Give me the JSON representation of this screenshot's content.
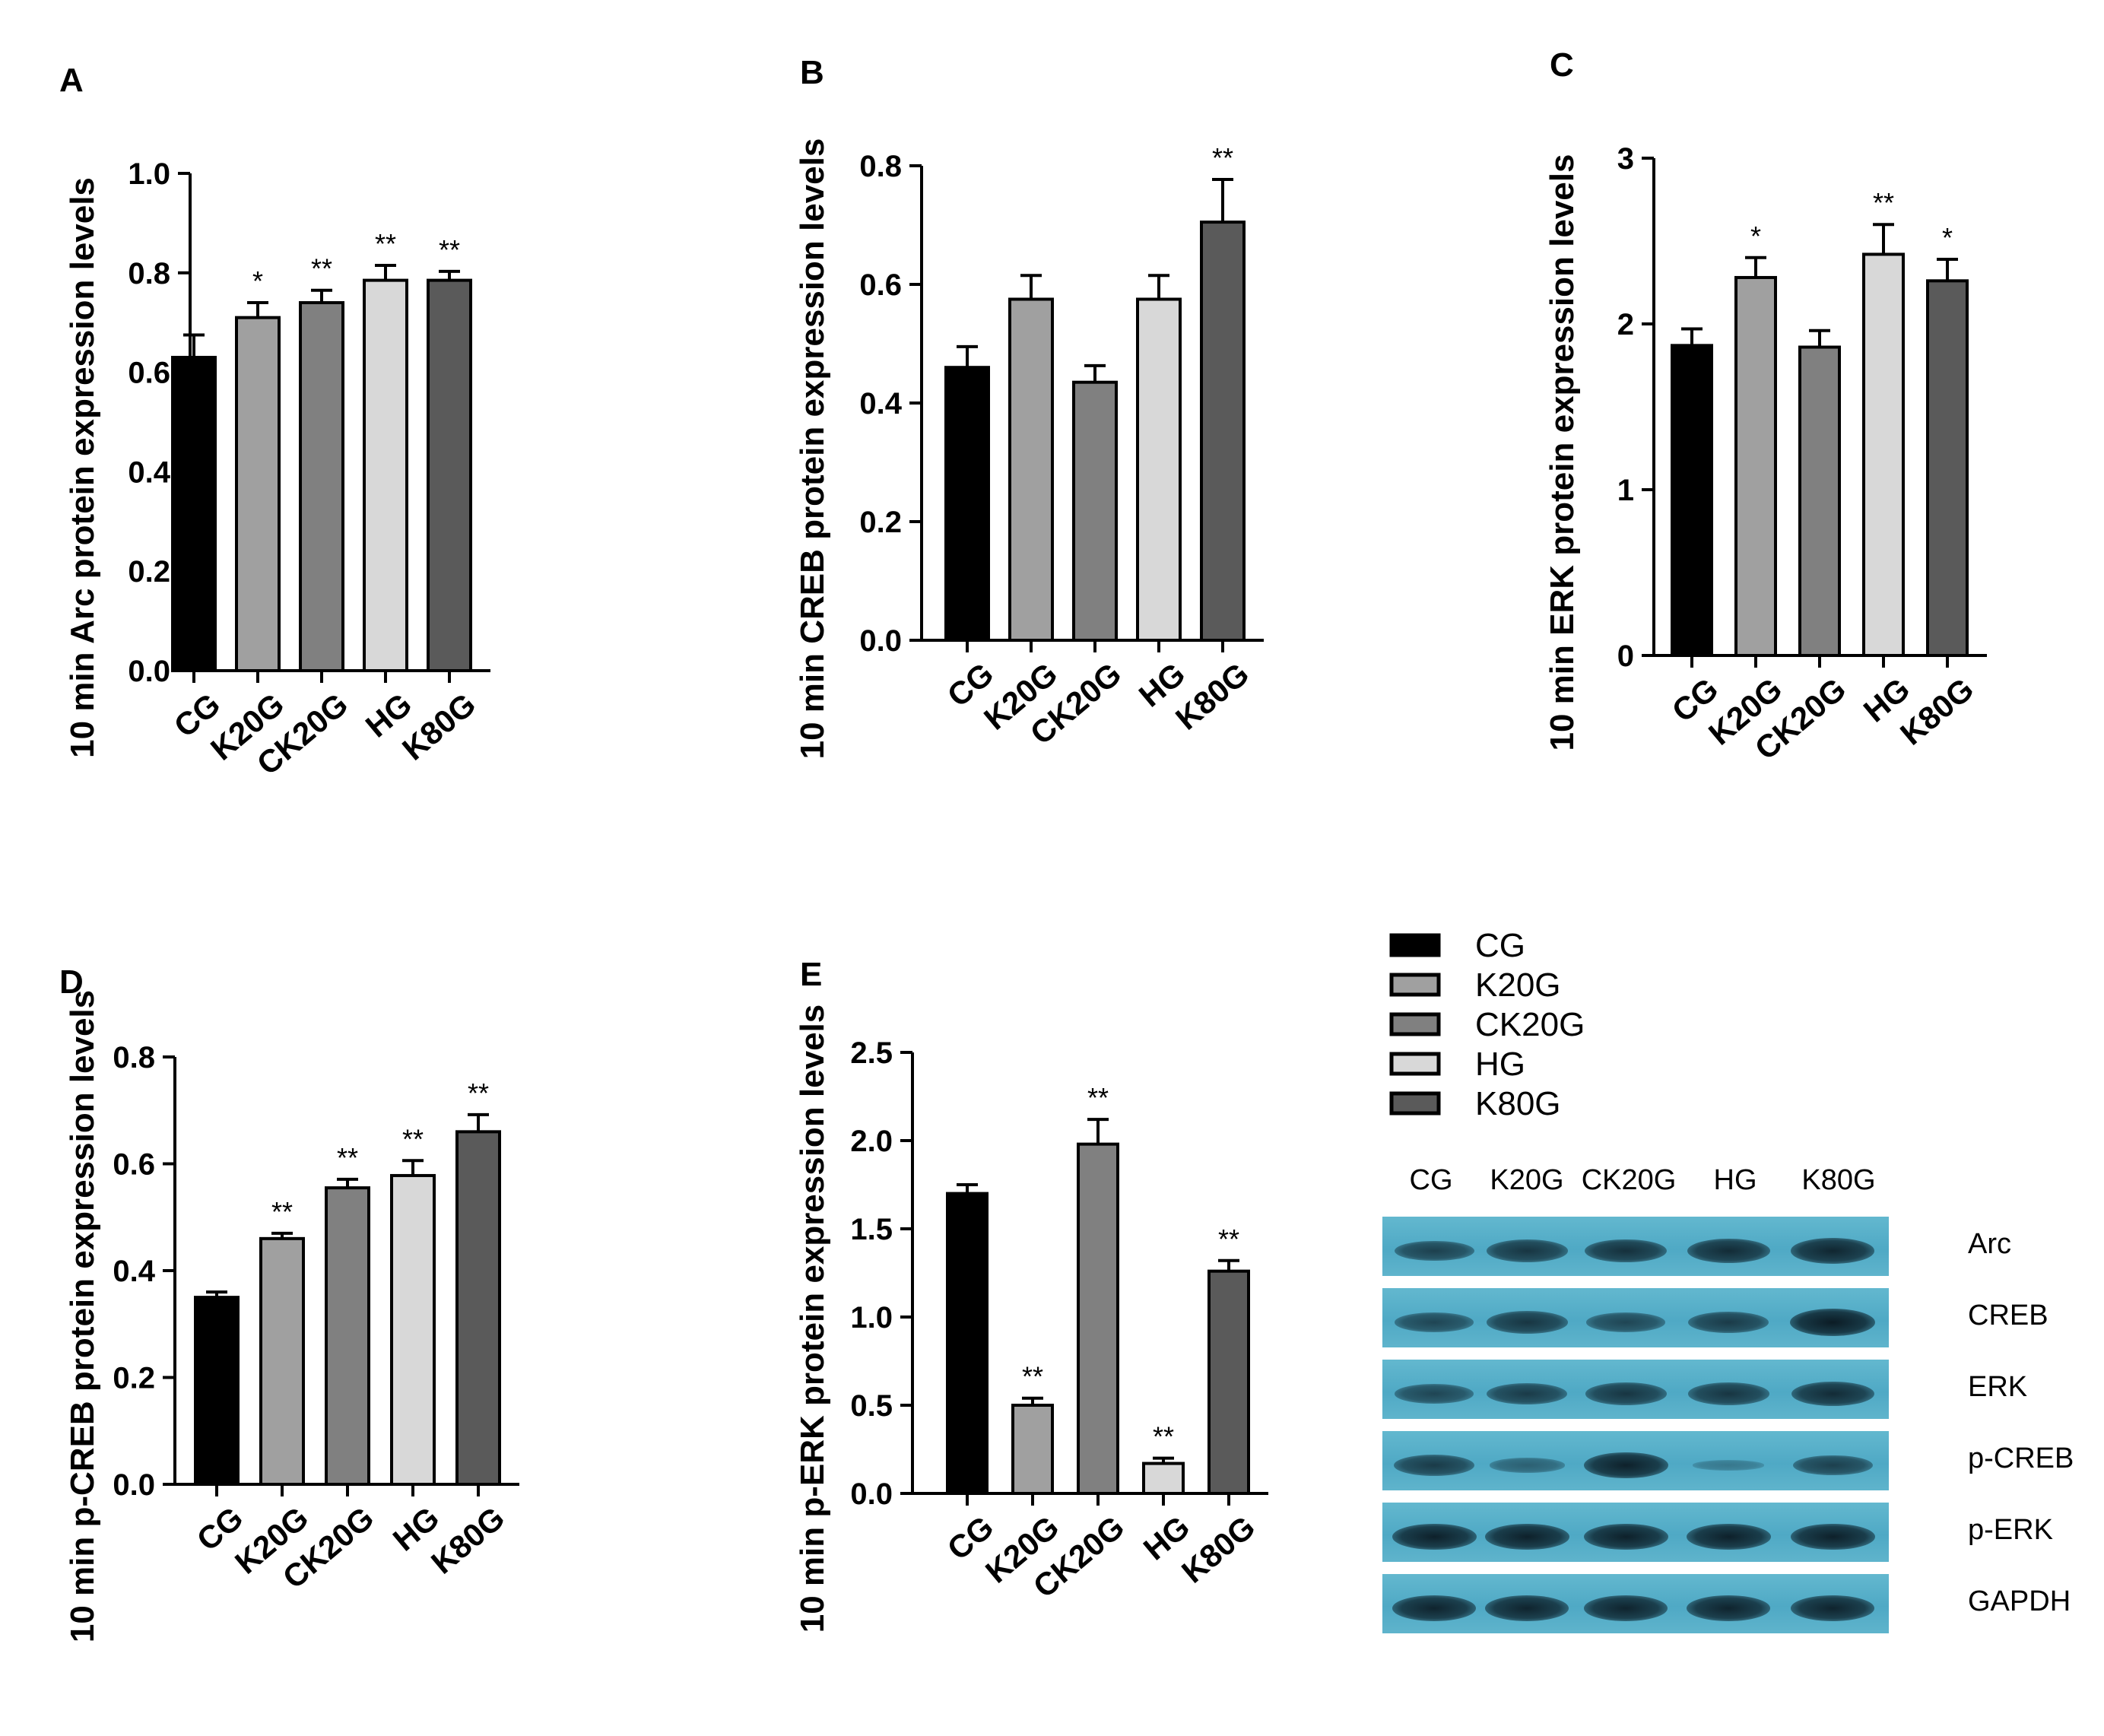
{
  "chart_data": [
    {
      "type": "bar",
      "panel": "A",
      "categories": [
        "CG",
        "K20G",
        "CK20G",
        "HG",
        "K80G"
      ],
      "values": [
        0.63,
        0.71,
        0.74,
        0.785,
        0.785
      ],
      "errors": [
        0.045,
        0.03,
        0.025,
        0.03,
        0.018
      ],
      "significance": [
        "",
        "*",
        "**",
        "**",
        "**"
      ],
      "ylabel": "10 min Arc protein expression levels",
      "ylim": [
        0,
        1.0
      ],
      "yticks": [
        "0.0",
        "0.2",
        "0.4",
        "0.6",
        "0.8",
        "1.0"
      ]
    },
    {
      "type": "bar",
      "panel": "B",
      "categories": [
        "CG",
        "K20G",
        "CK20G",
        "HG",
        "K80G"
      ],
      "values": [
        0.46,
        0.575,
        0.435,
        0.575,
        0.705
      ],
      "errors": [
        0.035,
        0.04,
        0.028,
        0.04,
        0.072
      ],
      "significance": [
        "",
        "",
        "",
        "",
        "**"
      ],
      "ylabel": "10 min CREB protein expression levels",
      "ylim": [
        0,
        0.8
      ],
      "yticks": [
        "0.0",
        "0.2",
        "0.4",
        "0.6",
        "0.8"
      ]
    },
    {
      "type": "bar",
      "panel": "C",
      "categories": [
        "CG",
        "K20G",
        "CK20G",
        "HG",
        "K80G"
      ],
      "values": [
        1.87,
        2.28,
        1.86,
        2.42,
        2.26
      ],
      "errors": [
        0.1,
        0.12,
        0.1,
        0.18,
        0.13
      ],
      "significance": [
        "",
        "*",
        "",
        "**",
        "*"
      ],
      "ylabel": "10 min ERK protein expression levels",
      "ylim": [
        0,
        3
      ],
      "yticks": [
        "0",
        "1",
        "2",
        "3"
      ]
    },
    {
      "type": "bar",
      "panel": "D",
      "categories": [
        "CG",
        "K20G",
        "CK20G",
        "HG",
        "K80G"
      ],
      "values": [
        0.35,
        0.46,
        0.555,
        0.578,
        0.66
      ],
      "errors": [
        0.01,
        0.01,
        0.016,
        0.028,
        0.032
      ],
      "significance": [
        "",
        "**",
        "**",
        "**",
        "**"
      ],
      "ylabel": "10 min p-CREB protein expression levels",
      "ylim": [
        0,
        0.8
      ],
      "yticks": [
        "0.0",
        "0.2",
        "0.4",
        "0.6",
        "0.8"
      ]
    },
    {
      "type": "bar",
      "panel": "E",
      "categories": [
        "CG",
        "K20G",
        "CK20G",
        "HG",
        "K80G"
      ],
      "values": [
        1.7,
        0.5,
        1.98,
        0.17,
        1.26
      ],
      "errors": [
        0.05,
        0.04,
        0.14,
        0.03,
        0.06
      ],
      "significance": [
        "",
        "**",
        "**",
        "**",
        "**"
      ],
      "ylabel": "10 min p-ERK protein expression levels",
      "ylim": [
        0,
        2.5
      ],
      "yticks": [
        "0.0",
        "0.5",
        "1.0",
        "1.5",
        "2.0",
        "2.5"
      ]
    }
  ],
  "colors": {
    "CG": "#000000",
    "K20G": "#a0a0a0",
    "CK20G": "#808080",
    "HG": "#d8d8d8",
    "K80G": "#5a5a5a"
  },
  "legend": [
    "CG",
    "K20G",
    "CK20G",
    "HG",
    "K80G"
  ],
  "blot": {
    "lanes": [
      "CG",
      "K20G",
      "CK20G",
      "HG",
      "K80G"
    ],
    "proteins": [
      {
        "name": "Arc",
        "intensity": [
          0.65,
          0.75,
          0.8,
          0.85,
          0.9
        ]
      },
      {
        "name": "CREB",
        "intensity": [
          0.6,
          0.75,
          0.6,
          0.7,
          1.0
        ]
      },
      {
        "name": "ERK",
        "intensity": [
          0.6,
          0.7,
          0.75,
          0.75,
          0.85
        ]
      },
      {
        "name": "p-CREB",
        "intensity": [
          0.7,
          0.35,
          0.95,
          0.12,
          0.65
        ]
      },
      {
        "name": "p-ERK",
        "intensity": [
          0.95,
          0.95,
          0.95,
          0.95,
          0.95
        ]
      },
      {
        "name": "GAPDH",
        "intensity": [
          0.92,
          0.92,
          0.92,
          0.92,
          0.92
        ]
      }
    ]
  }
}
